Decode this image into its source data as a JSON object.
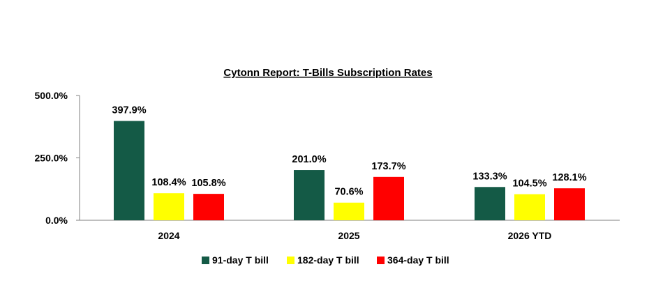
{
  "chart_data": {
    "type": "bar",
    "title": "Cytonn Report: T-Bills Subscription Rates",
    "xlabel": "",
    "ylabel": "",
    "categories": [
      "2024",
      "2025",
      "2026 YTD"
    ],
    "series": [
      {
        "name": "91-day T bill",
        "color": "#145a46",
        "values": [
          397.9,
          201.0,
          133.3
        ],
        "labels": [
          "397.9%",
          "201.0%",
          "133.3%"
        ]
      },
      {
        "name": "182-day T bill",
        "color": "#ffff00",
        "values": [
          108.4,
          70.6,
          104.5
        ],
        "labels": [
          "108.4%",
          "70.6%",
          "104.5%"
        ]
      },
      {
        "name": "364-day T bill",
        "color": "#ff0000",
        "values": [
          105.8,
          173.7,
          128.1
        ],
        "labels": [
          "105.8%",
          "173.7%",
          "128.1%"
        ]
      }
    ],
    "ylim": [
      0,
      500
    ],
    "yticks": [
      0,
      250,
      500
    ],
    "ytick_labels": [
      "0.0%",
      "250.0%",
      "500.0%"
    ],
    "grid": false,
    "legend_position": "bottom"
  }
}
